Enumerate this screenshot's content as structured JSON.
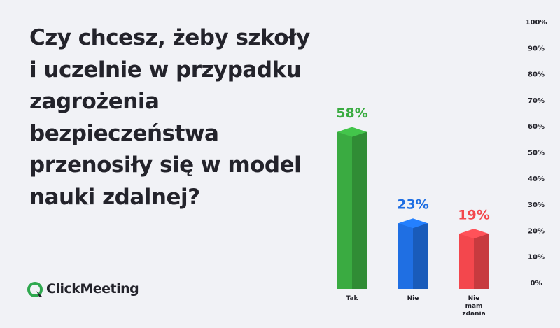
{
  "brand": "ClickMeeting",
  "chart_data": {
    "type": "bar3d",
    "title": "Czy chcesz, żeby szkoły i uczelnie w przypadku zagrożenia bezpieczeństwa przenosiły się w model nauki zdalnej?",
    "categories": [
      "Tak",
      "Nie",
      "Nie mam zdania"
    ],
    "values": [
      58,
      23,
      19
    ],
    "value_labels": [
      "58%",
      "23%",
      "19%"
    ],
    "colors": [
      "#3aab41",
      "#1f6fe3",
      "#f3474d"
    ],
    "ylim": [
      0,
      100
    ],
    "yticks": [
      {
        "value": 0,
        "label": "0%"
      },
      {
        "value": 10,
        "label": "10%"
      },
      {
        "value": 20,
        "label": "20%"
      },
      {
        "value": 30,
        "label": "30%"
      },
      {
        "value": 40,
        "label": "40%"
      },
      {
        "value": 50,
        "label": "50%"
      },
      {
        "value": 60,
        "label": "60%"
      },
      {
        "value": 70,
        "label": "70%"
      },
      {
        "value": 80,
        "label": "80%"
      },
      {
        "value": 90,
        "label": "90%"
      },
      {
        "value": 100,
        "label": "100%"
      }
    ],
    "grid": false
  }
}
